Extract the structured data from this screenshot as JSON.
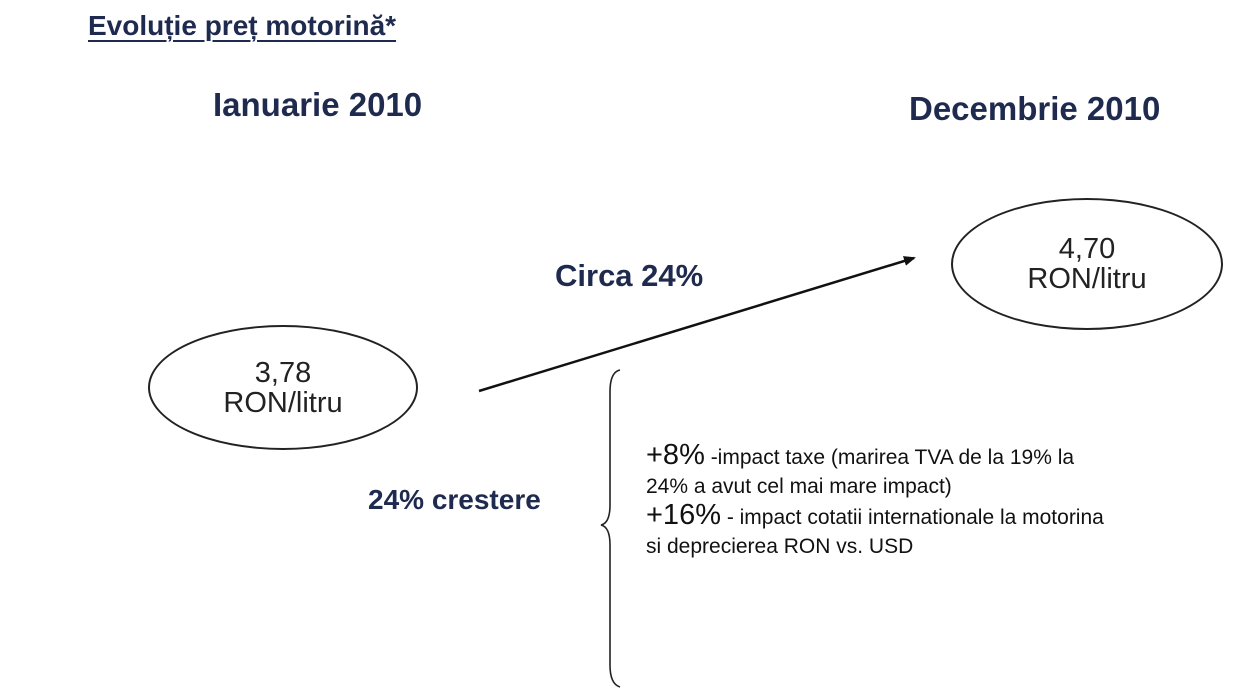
{
  "header": {
    "title": "Evoluție preț motorină*"
  },
  "periods": {
    "start": "Ianuarie 2010",
    "end": "Decembrie 2010"
  },
  "prices": {
    "start": {
      "value": "3,78",
      "unit": "RON/litru"
    },
    "end": {
      "value": "4,70",
      "unit": "RON/litru"
    }
  },
  "change_label": "Circa 24%",
  "growth_label": "24% crestere",
  "breakdown": [
    {
      "pct": "+8%",
      "desc_line1": " -impact taxe (marirea TVA de la 19% la",
      "desc_line2": "24% a avut cel mai mare impact)"
    },
    {
      "pct": "+16%",
      "desc_line1": " - impact cotatii internationale la motorina",
      "desc_line2": "si deprecierea RON vs. USD"
    }
  ],
  "colors": {
    "heading": "#1f2a4f",
    "body_text": "#111111",
    "outline": "#222222"
  }
}
